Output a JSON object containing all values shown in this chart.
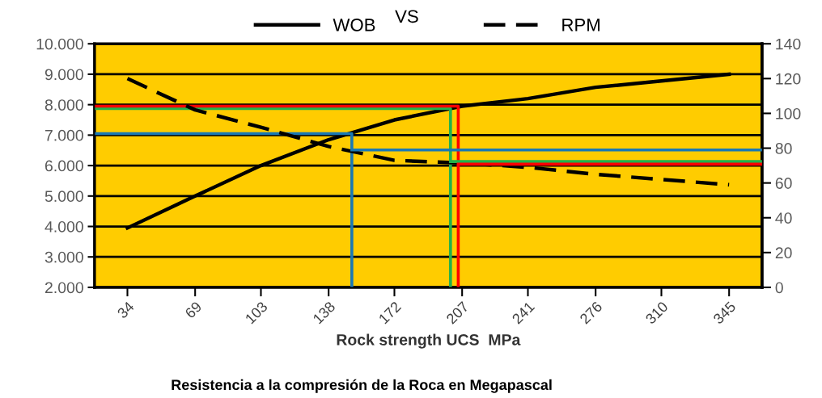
{
  "chart_data": {
    "type": "line",
    "xlabel": "Rock strength UCS  MPa",
    "annotations": [
      "VS",
      "Resistencia a la compresión de la Roca en Megapascal"
    ],
    "x": [
      34,
      69,
      103,
      138,
      172,
      207,
      241,
      276,
      310,
      345
    ],
    "xlim": [
      17,
      362
    ],
    "xticks": [
      34,
      69,
      103,
      138,
      172,
      207,
      241,
      276,
      310,
      345
    ],
    "ylim": [
      2000,
      10000
    ],
    "yticks": [
      {
        "value": 2000,
        "label": "2.000"
      },
      {
        "value": 3000,
        "label": "3.000"
      },
      {
        "value": 4000,
        "label": "4.000"
      },
      {
        "value": 5000,
        "label": "5.000"
      },
      {
        "value": 6000,
        "label": "6.000"
      },
      {
        "value": 7000,
        "label": "7.000"
      },
      {
        "value": 8000,
        "label": "8.000"
      },
      {
        "value": 9000,
        "label": "9.000"
      },
      {
        "value": 10000,
        "label": "10.000"
      }
    ],
    "y2lim": [
      0,
      140
    ],
    "y2ticks": [
      0,
      20,
      40,
      60,
      80,
      100,
      120,
      140
    ],
    "grid": "y",
    "legend": "top",
    "marker": "none",
    "series": [
      {
        "name": "WOB",
        "color": "#000000",
        "line_style": "solid",
        "values": [
          3950,
          5000,
          6000,
          6850,
          7500,
          7950,
          8200,
          8570,
          8780,
          9000
        ]
      },
      {
        "name": "RPM",
        "color": "#000000",
        "line_style": "dashed",
        "axis": "y2",
        "values": [
          120,
          102,
          92,
          81,
          73,
          71.5,
          69,
          65,
          62,
          59
        ]
      },
      {
        "color": "#1a78b4",
        "line_style": "solid",
        "x": [
          17,
          150,
          150
        ],
        "values": [
          7050,
          7050,
          2000
        ]
      },
      {
        "color": "#1a78b4",
        "line_style": "solid",
        "axis": "y2",
        "x": [
          150,
          362
        ],
        "values": [
          79,
          79
        ]
      },
      {
        "color": "#22b14c",
        "line_style": "solid",
        "x": [
          17,
          201,
          201
        ],
        "values": [
          7870,
          7870,
          2000
        ]
      },
      {
        "color": "#22b14c",
        "line_style": "solid",
        "axis": "y2",
        "x": [
          201,
          362
        ],
        "values": [
          72.3,
          72.3
        ]
      },
      {
        "color": "#ff0000",
        "line_style": "solid",
        "x": [
          17,
          205,
          205
        ],
        "values": [
          7950,
          7950,
          2000
        ]
      },
      {
        "color": "#ff0000",
        "line_style": "solid",
        "axis": "y2",
        "x": [
          205,
          362
        ],
        "values": [
          70.8,
          70.8
        ]
      }
    ]
  }
}
